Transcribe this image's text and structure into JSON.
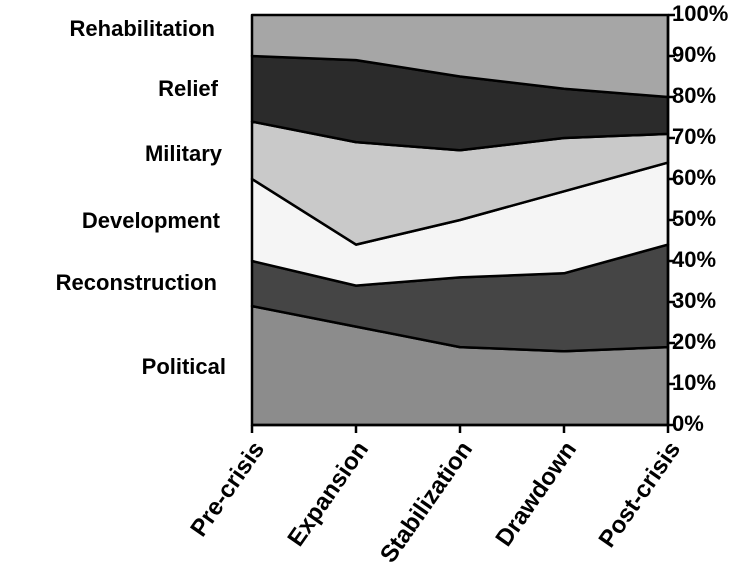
{
  "chart_data": {
    "type": "stacked_area",
    "categories": [
      "Pre-crisis",
      "Expansion",
      "Stabilization",
      "Drawdown",
      "Post-crisis"
    ],
    "series": [
      {
        "name": "Political",
        "color": "#8c8c8c",
        "values": [
          29,
          24,
          19,
          18,
          19
        ]
      },
      {
        "name": "Reconstruction",
        "color": "#454545",
        "values": [
          11,
          10,
          17,
          19,
          25
        ]
      },
      {
        "name": "Development",
        "color": "#f5f5f5",
        "values": [
          20,
          10,
          14,
          20,
          20
        ]
      },
      {
        "name": "Military",
        "color": "#c9c9c9",
        "values": [
          14,
          25,
          17,
          13,
          7
        ]
      },
      {
        "name": "Relief",
        "color": "#2b2b2b",
        "values": [
          16,
          20,
          18,
          12,
          9
        ]
      },
      {
        "name": "Rehabilitation",
        "color": "#a6a6a6",
        "values": [
          10,
          11,
          15,
          18,
          20
        ]
      }
    ],
    "ylim": [
      0,
      100
    ],
    "yticks": [
      {
        "value": 0,
        "label": "0%"
      },
      {
        "value": 10,
        "label": "10%"
      },
      {
        "value": 20,
        "label": "20%"
      },
      {
        "value": 30,
        "label": "30%"
      },
      {
        "value": 40,
        "label": "40%"
      },
      {
        "value": 50,
        "label": "50%"
      },
      {
        "value": 60,
        "label": "60%"
      },
      {
        "value": 70,
        "label": "70%"
      },
      {
        "value": 80,
        "label": "80%"
      },
      {
        "value": 90,
        "label": "90%"
      },
      {
        "value": 100,
        "label": "100%"
      }
    ]
  }
}
